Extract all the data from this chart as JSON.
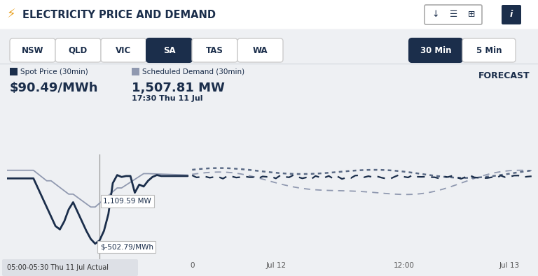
{
  "title": "ELECTRICITY PRICE AND DEMAND",
  "background_color": "#eef0f3",
  "header_bg": "#ffffff",
  "nav_buttons": [
    "NSW",
    "QLD",
    "VIC",
    "SA",
    "TAS",
    "WA"
  ],
  "active_nav": "SA",
  "time_buttons": [
    "30 Min",
    "5 Min"
  ],
  "active_time": "30 Min",
  "spot_price_label": "Spot Price (30min)",
  "spot_price_value": "$90.49/MWh",
  "demand_label": "Scheduled Demand (30min)",
  "demand_value": "1,507.81 MW",
  "demand_time": "17:30 Thu 11 Jul",
  "forecast_label": "FORECAST",
  "tooltip1": "1,109.59 MW",
  "tooltip2": "$-502.79/MWh",
  "bottom_label": "05:00-05:30 Thu 11 Jul Actual",
  "x_tick_labels": [
    "0",
    "Jul 12",
    "12:00",
    "Jul 13"
  ],
  "dark_navy": "#1b2e4b",
  "demand_color": "#9099b0",
  "forecast_dotted_color": "#5a6a85",
  "button_active_bg": "#1b2e4b",
  "button_inactive_bg": "#ffffff",
  "button_border": "#cccccc",
  "separator_color": "#d8dce3"
}
